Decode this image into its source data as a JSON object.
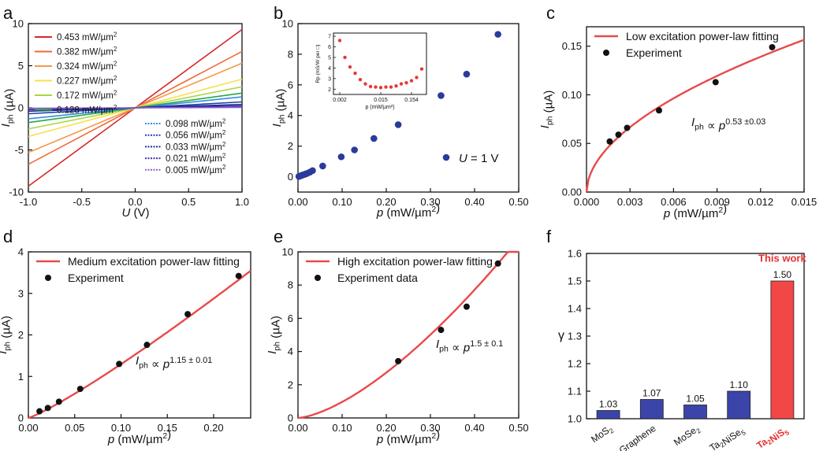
{
  "panels": {
    "a": {
      "letter": "a"
    },
    "b": {
      "letter": "b"
    },
    "c": {
      "letter": "c"
    },
    "d": {
      "letter": "d"
    },
    "e": {
      "letter": "e"
    },
    "f": {
      "letter": "f"
    }
  },
  "chart_data": [
    {
      "id": "a",
      "type": "line",
      "xlabel": "U (V)",
      "ylabel": "Iph (µA)",
      "xlim": [
        -1.0,
        1.0
      ],
      "ylim": [
        -10,
        10
      ],
      "xticks": [
        -1.0,
        -0.5,
        0.0,
        0.5,
        1.0
      ],
      "yticks": [
        -10,
        -5,
        0,
        5,
        10
      ],
      "xtick_labels": [
        "-1.0",
        "-0.5",
        "0.0",
        "0.5",
        "1.0"
      ],
      "ytick_labels": [
        "-10",
        "-5",
        "0",
        "5",
        "10"
      ],
      "series": [
        {
          "name": "0.453 mW/µm²",
          "color": "#d62728",
          "slope": 9.3
        },
        {
          "name": "0.382 mW/µm²",
          "color": "#ec6a3c",
          "slope": 6.7
        },
        {
          "name": "0.324 mW/µm²",
          "color": "#f49a4a",
          "slope": 5.3
        },
        {
          "name": "0.227 mW/µm²",
          "color": "#f6e04c",
          "slope": 3.4
        },
        {
          "name": "0.172 mW/µm²",
          "color": "#a8d645",
          "slope": 2.5
        },
        {
          "name": "0.128 mW/µm²",
          "color": "#2aa745",
          "slope": 1.75
        },
        {
          "name": "0.098 mW/µm²",
          "color": "#2f8ee0",
          "slope": 1.3
        },
        {
          "name": "0.056 mW/µm²",
          "color": "#1c3faa",
          "slope": 0.7
        },
        {
          "name": "0.033 mW/µm²",
          "color": "#1e2a8c",
          "slope": 0.4
        },
        {
          "name": "0.021 mW/µm²",
          "color": "#3b2da6",
          "slope": 0.22
        },
        {
          "name": "0.005 mW/µm²",
          "color": "#8b5cc8",
          "slope": 0.05
        }
      ]
    },
    {
      "id": "b",
      "type": "scatter",
      "xlabel": "p (mW/µm²)",
      "ylabel": "Iph (µA)",
      "xlim": [
        0,
        0.5
      ],
      "ylim": [
        -1,
        10
      ],
      "xticks": [
        0,
        0.1,
        0.2,
        0.3,
        0.4,
        0.5
      ],
      "xtick_labels": [
        "0.00",
        "0.10",
        "0.20",
        "0.30",
        "0.40",
        "0.50"
      ],
      "yticks": [
        0,
        2,
        4,
        6,
        8,
        10
      ],
      "ytick_labels": [
        "0",
        "2",
        "4",
        "6",
        "8",
        "10"
      ],
      "annotation": "U = 1 V",
      "color": "#2b3a9b",
      "points": [
        [
          0.002,
          0.02
        ],
        [
          0.005,
          0.05
        ],
        [
          0.008,
          0.08
        ],
        [
          0.011,
          0.12
        ],
        [
          0.015,
          0.15
        ],
        [
          0.018,
          0.19
        ],
        [
          0.021,
          0.22
        ],
        [
          0.027,
          0.3
        ],
        [
          0.033,
          0.4
        ],
        [
          0.056,
          0.7
        ],
        [
          0.098,
          1.3
        ],
        [
          0.128,
          1.75
        ],
        [
          0.172,
          2.5
        ],
        [
          0.227,
          3.4
        ],
        [
          0.324,
          5.3
        ],
        [
          0.382,
          6.7
        ],
        [
          0.453,
          9.3
        ]
      ],
      "inset": {
        "xlabel": "p (mW/µm²)",
        "ylabel": "Rp (mS/W per □)",
        "xtick_labels": [
          "0.002",
          "0.015",
          "0.154"
        ],
        "yticks": [
          2,
          3,
          4,
          5,
          6,
          7
        ],
        "ytick_labels": [
          "2",
          "3",
          "4",
          "5",
          "6",
          "7"
        ],
        "ylim": [
          1.5,
          7.3
        ],
        "color": "#e53935",
        "values": [
          6.6,
          5.0,
          4.1,
          3.5,
          2.9,
          2.5,
          2.25,
          2.2,
          2.15,
          2.2,
          2.2,
          2.3,
          2.5,
          2.6,
          2.8,
          3.1,
          3.9
        ]
      }
    },
    {
      "id": "c",
      "type": "scatter",
      "xlabel": "p (mW/µm²)",
      "ylabel": "Iph (µA)",
      "xlim": [
        0,
        0.015
      ],
      "ylim": [
        0,
        0.17
      ],
      "xticks": [
        0,
        0.003,
        0.006,
        0.009,
        0.012,
        0.015
      ],
      "xtick_labels": [
        "0.000",
        "0.003",
        "0.006",
        "0.009",
        "0.012",
        "0.015"
      ],
      "yticks": [
        0,
        0.05,
        0.1,
        0.15
      ],
      "ytick_labels": [
        "0.00",
        "0.05",
        "0.10",
        "0.15"
      ],
      "legend": [
        "Low excitation power-law fitting",
        "Experiment"
      ],
      "annotation": "Iph ∝ p^(0.53 ±0.03)",
      "fit": {
        "a": 1.45,
        "b": 0.53,
        "color": "#e84a4a"
      },
      "points": [
        [
          0.0016,
          0.052
        ],
        [
          0.0022,
          0.059
        ],
        [
          0.0028,
          0.066
        ],
        [
          0.005,
          0.084
        ],
        [
          0.0089,
          0.113
        ],
        [
          0.0128,
          0.149
        ]
      ]
    },
    {
      "id": "d",
      "type": "scatter",
      "xlabel": "p (mW/µm²)",
      "ylabel": "Iph (µA)",
      "xlim": [
        0,
        0.24
      ],
      "ylim": [
        0,
        4
      ],
      "xticks": [
        0,
        0.05,
        0.1,
        0.15,
        0.2
      ],
      "xtick_labels": [
        "0.00",
        "0.05",
        "0.10",
        "0.15",
        "0.20"
      ],
      "yticks": [
        0,
        1,
        2,
        3,
        4
      ],
      "ytick_labels": [
        "0",
        "1",
        "2",
        "3",
        "4"
      ],
      "legend": [
        "Medium excitation power-law fitting",
        "Experiment"
      ],
      "annotation": "Iph ∝ p^(1.15 ± 0.01)",
      "fit": {
        "a": 18.3,
        "b": 1.15,
        "color": "#e84a4a"
      },
      "points": [
        [
          0.012,
          0.16
        ],
        [
          0.021,
          0.24
        ],
        [
          0.033,
          0.39
        ],
        [
          0.056,
          0.7
        ],
        [
          0.098,
          1.3
        ],
        [
          0.128,
          1.76
        ],
        [
          0.172,
          2.5
        ],
        [
          0.227,
          3.42
        ]
      ]
    },
    {
      "id": "e",
      "type": "scatter",
      "xlabel": "p (mW/µm²)",
      "ylabel": "Iph (µA)",
      "xlim": [
        0,
        0.5
      ],
      "ylim": [
        0,
        10
      ],
      "xticks": [
        0,
        0.1,
        0.2,
        0.3,
        0.4,
        0.5
      ],
      "xtick_labels": [
        "0.00",
        "0.10",
        "0.20",
        "0.30",
        "0.40",
        "0.50"
      ],
      "yticks": [
        0,
        2,
        4,
        6,
        8,
        10
      ],
      "ytick_labels": [
        "0",
        "2",
        "4",
        "6",
        "8",
        "10"
      ],
      "legend": [
        "High excitation power-law fitting",
        "Experiment data"
      ],
      "annotation": "Iph ∝ p^(1.5 ± 0.1)",
      "fit": {
        "a": 30.5,
        "b": 1.5,
        "color": "#e84a4a"
      },
      "points": [
        [
          0.227,
          3.42
        ],
        [
          0.324,
          5.3
        ],
        [
          0.382,
          6.7
        ],
        [
          0.453,
          9.3
        ]
      ]
    },
    {
      "id": "f",
      "type": "bar",
      "ylabel": "γ",
      "ylim": [
        1.0,
        1.6
      ],
      "yticks": [
        1.0,
        1.1,
        1.2,
        1.3,
        1.4,
        1.5,
        1.6
      ],
      "ytick_labels": [
        "1.0",
        "1.1",
        "1.2",
        "1.3",
        "1.4",
        "1.5",
        "1.6"
      ],
      "categories": [
        "MoS2",
        "Graphene",
        "MoSe2",
        "Ta2NiSe5",
        "Ta2NiS5"
      ],
      "values": [
        1.03,
        1.07,
        1.05,
        1.1,
        1.5
      ],
      "value_labels": [
        "1.03",
        "1.07",
        "1.05",
        "1.10",
        "1.50"
      ],
      "colors": [
        "#3b44a8",
        "#3b44a8",
        "#3b44a8",
        "#3b44a8",
        "#f24747"
      ],
      "highlight_label": "This work"
    }
  ]
}
